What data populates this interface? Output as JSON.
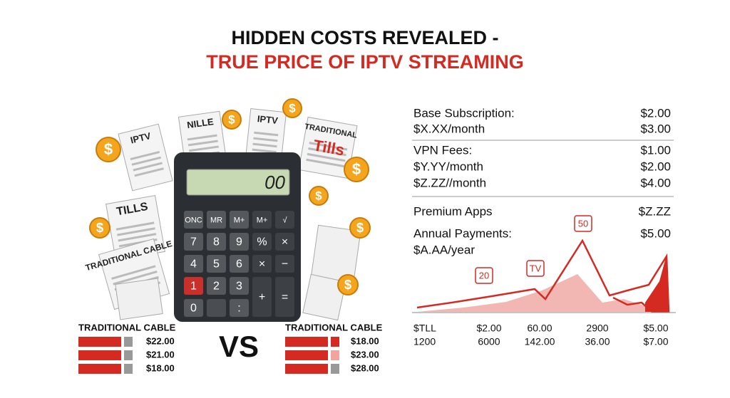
{
  "header": {
    "title_line1": "HIDDEN COSTS REVEALED -",
    "title_line2": "TRUE PRICE OF IPTV STREAMING"
  },
  "illustration": {
    "bills": [
      "IPTV",
      "NILLE",
      "IPTV",
      "TRADITIONAL",
      "Tills",
      "TILLS",
      "TRADITIONAL CABLE"
    ],
    "coin_symbol": "$",
    "display": "00",
    "keys": [
      "ONC",
      "MR",
      "M+",
      "M+",
      "√",
      "7",
      "8",
      "9",
      "%",
      "×",
      "4",
      "5",
      "6",
      "×",
      "−",
      "1",
      "2",
      "3",
      "+",
      "=",
      "0",
      ":"
    ]
  },
  "comparison": {
    "left": {
      "label": "TRADITIONAL CABLE",
      "prices": [
        "$22.00",
        "$21.00",
        "$18.00"
      ]
    },
    "vs": "VS",
    "right": {
      "label": "TRADITIONAL CABLE",
      "prices": [
        "$18.00",
        "$23.00",
        "$28.00"
      ]
    }
  },
  "breakdown": {
    "rows": [
      {
        "label": "Base Subscription:",
        "value": "$2.00"
      },
      {
        "label": "$X.XX/month",
        "value": "$3.00"
      },
      {
        "label": "VPN Fees:",
        "value": "$1.00"
      },
      {
        "label": "$Y.YY/month",
        "value": "$2.00"
      },
      {
        "label": "$Z.ZZ//month",
        "value": "$4.00"
      },
      {
        "label": "Premium Apps",
        "value": "$Z.ZZ"
      },
      {
        "label": "Annual Payments:",
        "value": "$5.00"
      },
      {
        "label": "$A.AA/year"
      }
    ]
  },
  "chart": {
    "callouts": [
      "50",
      "20",
      "TV"
    ],
    "footer_rows": [
      [
        "$TLL",
        "$2.00",
        "60.00",
        "2900",
        "$5.00"
      ],
      [
        "1200",
        "6000",
        "142.00",
        "36.00",
        "$7.00"
      ]
    ]
  }
}
